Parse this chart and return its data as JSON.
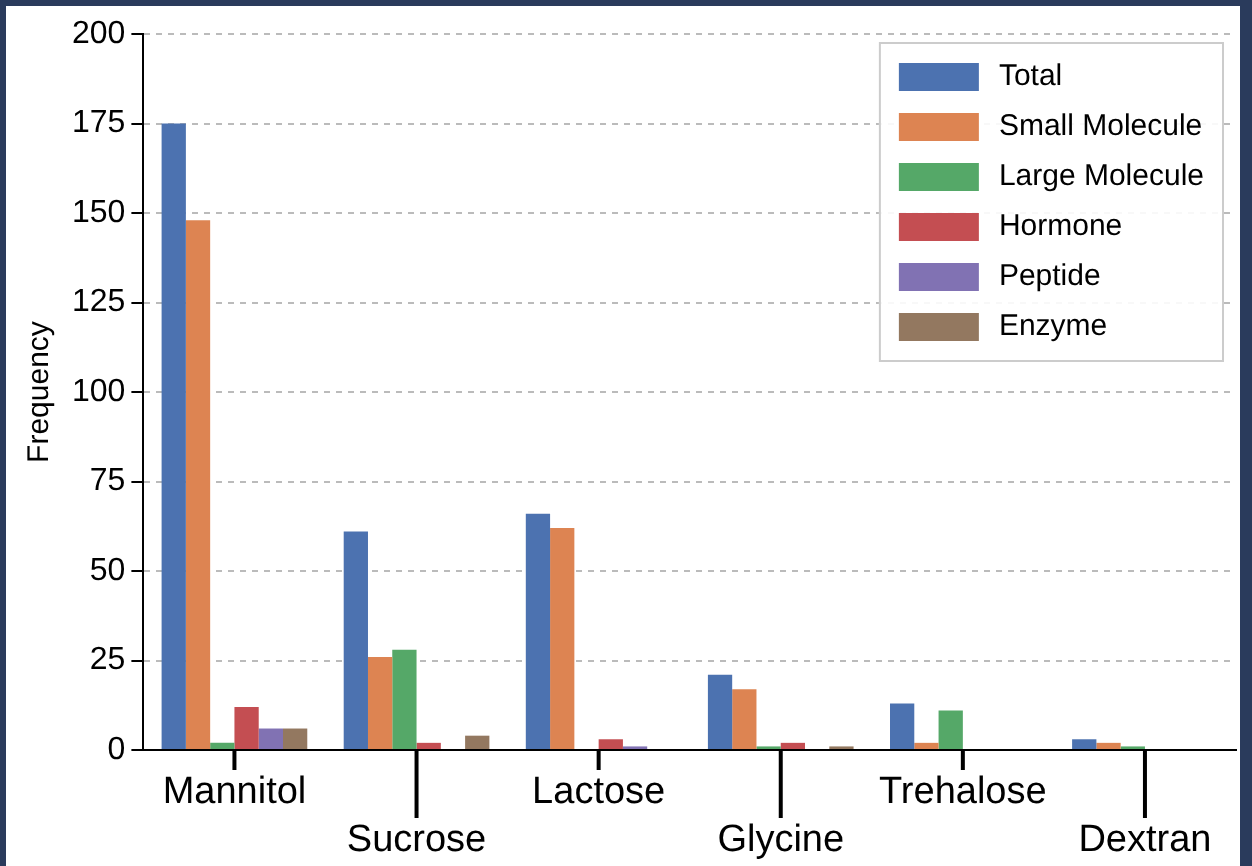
{
  "chart_data": {
    "type": "bar",
    "ylabel": "Frequency",
    "categories": [
      "Mannitol",
      "Sucrose",
      "Lactose",
      "Glycine",
      "Trehalose",
      "Dextran"
    ],
    "series": [
      {
        "name": "Total",
        "color": "#4c72b0",
        "values": [
          175,
          61,
          66,
          21,
          13,
          3
        ]
      },
      {
        "name": "Small Molecule",
        "color": "#dd8452",
        "values": [
          148,
          26,
          62,
          17,
          2,
          2
        ]
      },
      {
        "name": "Large Molecule",
        "color": "#55a868",
        "values": [
          2,
          28,
          0,
          1,
          11,
          1
        ]
      },
      {
        "name": "Hormone",
        "color": "#c44e52",
        "values": [
          12,
          2,
          3,
          2,
          0,
          0
        ]
      },
      {
        "name": "Peptide",
        "color": "#8172b3",
        "values": [
          6,
          0,
          1,
          0,
          0,
          0
        ]
      },
      {
        "name": "Enzyme",
        "color": "#937860",
        "values": [
          6,
          4,
          0,
          1,
          0,
          0
        ]
      }
    ],
    "ylim": [
      0,
      200
    ],
    "yticks": [
      0,
      25,
      50,
      75,
      100,
      125,
      150,
      175,
      200
    ],
    "grid": "y",
    "legend": "top right"
  }
}
